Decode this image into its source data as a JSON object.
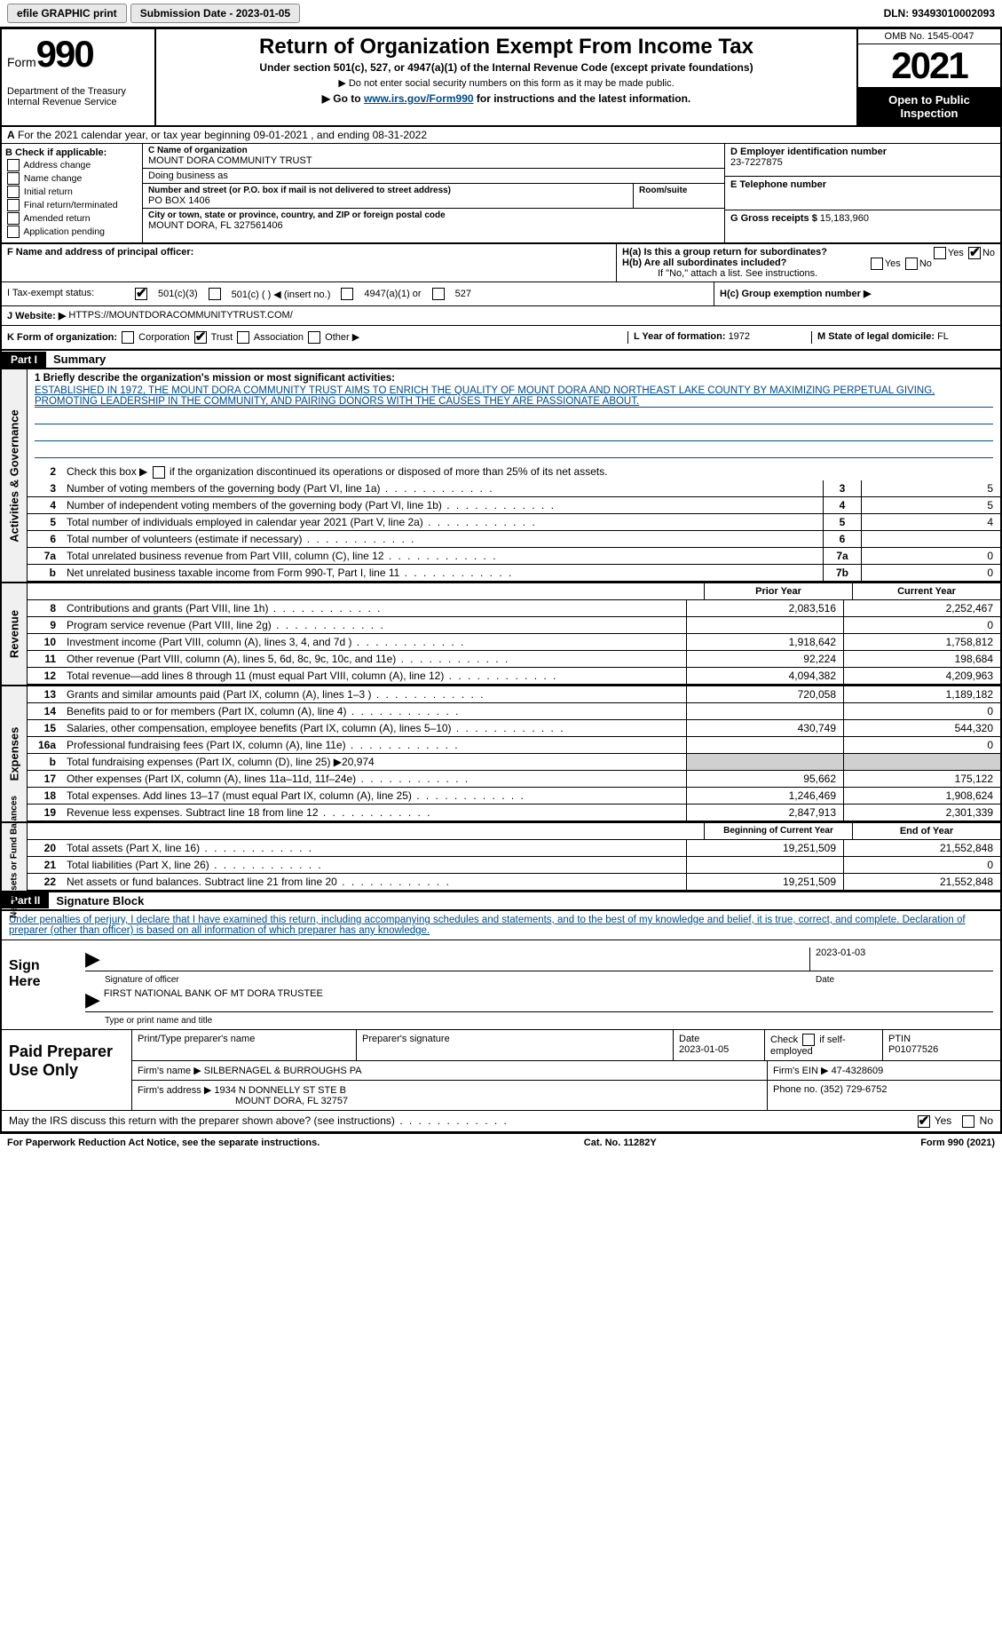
{
  "topbar": {
    "efile": "efile GRAPHIC print",
    "submission_label": "Submission Date - 2023-01-05",
    "dln": "DLN: 93493010002093"
  },
  "header": {
    "form_prefix": "Form",
    "form_number": "990",
    "dept": "Department of the Treasury",
    "irs": "Internal Revenue Service",
    "title": "Return of Organization Exempt From Income Tax",
    "sub1": "Under section 501(c), 527, or 4947(a)(1) of the Internal Revenue Code (except private foundations)",
    "sub2": "▶ Do not enter social security numbers on this form as it may be made public.",
    "sub3_pre": "▶ Go to ",
    "sub3_link": "www.irs.gov/Form990",
    "sub3_post": " for instructions and the latest information.",
    "omb": "OMB No. 1545-0047",
    "year": "2021",
    "open_pub": "Open to Public Inspection"
  },
  "rowA": "For the 2021 calendar year, or tax year beginning 09-01-2021    , and ending 08-31-2022",
  "colB": {
    "hdr": "B Check if applicable:",
    "items": [
      "Address change",
      "Name change",
      "Initial return",
      "Final return/terminated",
      "Amended return",
      "Application pending"
    ]
  },
  "colC": {
    "name_label": "C Name of organization",
    "name": "MOUNT DORA COMMUNITY TRUST",
    "dba_label": "Doing business as",
    "street_label": "Number and street (or P.O. box if mail is not delivered to street address)",
    "room_label": "Room/suite",
    "street": "PO BOX 1406",
    "city_label": "City or town, state or province, country, and ZIP or foreign postal code",
    "city": "MOUNT DORA, FL  327561406"
  },
  "colD": {
    "ein_label": "D Employer identification number",
    "ein": "23-7227875",
    "tel_label": "E Telephone number",
    "gross_label": "G Gross receipts $",
    "gross": "15,183,960"
  },
  "rowFG": {
    "f_label": "F  Name and address of principal officer:",
    "ha_label": "H(a)  Is this a group return for subordinates?",
    "hb_label": "H(b)  Are all subordinates included?",
    "hb_note": "If \"No,\" attach a list. See instructions.",
    "hc_label": "H(c)  Group exemption number ▶",
    "yes": "Yes",
    "no": "No"
  },
  "status": {
    "label": "I   Tax-exempt status:",
    "c3": "501(c)(3)",
    "c_other": "501(c) (   ) ◀ (insert no.)",
    "a1": "4947(a)(1) or",
    "s527": "527"
  },
  "website": {
    "label": "J   Website: ▶",
    "url": "HTTPS://MOUNTDORACOMMUNITYTRUST.COM/"
  },
  "korg": {
    "label": "K Form of organization:",
    "corp": "Corporation",
    "trust": "Trust",
    "assoc": "Association",
    "other": "Other ▶",
    "year_label": "L Year of formation: ",
    "year": "1972",
    "state_label": "M State of legal domicile: ",
    "state": "FL"
  },
  "part1": {
    "hdr": "Part I",
    "title": "Summary",
    "line1_label": "1  Briefly describe the organization's mission or most significant activities:",
    "mission": "ESTABLISHED IN 1972, THE MOUNT DORA COMMUNITY TRUST AIMS TO ENRICH THE QUALITY OF MOUNT DORA AND NORTHEAST LAKE COUNTY BY MAXIMIZING PERPETUAL GIVING, PROMOTING LEADERSHIP IN THE COMMUNITY, AND PAIRING DONORS WITH THE CAUSES THEY ARE PASSIONATE ABOUT.",
    "line2": "Check this box ▶     if the organization discontinued its operations or disposed of more than 25% of its net assets.",
    "lines_gov": [
      {
        "n": "3",
        "t": "Number of voting members of the governing body (Part VI, line 1a)",
        "c": "3",
        "v": "5"
      },
      {
        "n": "4",
        "t": "Number of independent voting members of the governing body (Part VI, line 1b)",
        "c": "4",
        "v": "5"
      },
      {
        "n": "5",
        "t": "Total number of individuals employed in calendar year 2021 (Part V, line 2a)",
        "c": "5",
        "v": "4"
      },
      {
        "n": "6",
        "t": "Total number of volunteers (estimate if necessary)",
        "c": "6",
        "v": ""
      },
      {
        "n": "7a",
        "t": "Total unrelated business revenue from Part VIII, column (C), line 12",
        "c": "7a",
        "v": "0"
      },
      {
        "n": "b",
        "t": "Net unrelated business taxable income from Form 990-T, Part I, line 11",
        "c": "7b",
        "v": "0"
      }
    ],
    "prior_hdr": "Prior Year",
    "current_hdr": "Current Year",
    "rev_lines": [
      {
        "n": "8",
        "t": "Contributions and grants (Part VIII, line 1h)",
        "p": "2,083,516",
        "c": "2,252,467"
      },
      {
        "n": "9",
        "t": "Program service revenue (Part VIII, line 2g)",
        "p": "",
        "c": "0"
      },
      {
        "n": "10",
        "t": "Investment income (Part VIII, column (A), lines 3, 4, and 7d )",
        "p": "1,918,642",
        "c": "1,758,812"
      },
      {
        "n": "11",
        "t": "Other revenue (Part VIII, column (A), lines 5, 6d, 8c, 9c, 10c, and 11e)",
        "p": "92,224",
        "c": "198,684"
      },
      {
        "n": "12",
        "t": "Total revenue—add lines 8 through 11 (must equal Part VIII, column (A), line 12)",
        "p": "4,094,382",
        "c": "4,209,963"
      }
    ],
    "exp_lines": [
      {
        "n": "13",
        "t": "Grants and similar amounts paid (Part IX, column (A), lines 1–3 )",
        "p": "720,058",
        "c": "1,189,182"
      },
      {
        "n": "14",
        "t": "Benefits paid to or for members (Part IX, column (A), line 4)",
        "p": "",
        "c": "0"
      },
      {
        "n": "15",
        "t": "Salaries, other compensation, employee benefits (Part IX, column (A), lines 5–10)",
        "p": "430,749",
        "c": "544,320"
      },
      {
        "n": "16a",
        "t": "Professional fundraising fees (Part IX, column (A), line 11e)",
        "p": "",
        "c": "0"
      },
      {
        "n": "b",
        "t": "Total fundraising expenses (Part IX, column (D), line 25) ▶20,974",
        "p": "SHADE",
        "c": "SHADE"
      },
      {
        "n": "17",
        "t": "Other expenses (Part IX, column (A), lines 11a–11d, 11f–24e)",
        "p": "95,662",
        "c": "175,122"
      },
      {
        "n": "18",
        "t": "Total expenses. Add lines 13–17 (must equal Part IX, column (A), line 25)",
        "p": "1,246,469",
        "c": "1,908,624"
      },
      {
        "n": "19",
        "t": "Revenue less expenses. Subtract line 18 from line 12",
        "p": "2,847,913",
        "c": "2,301,339"
      }
    ],
    "begin_hdr": "Beginning of Current Year",
    "end_hdr": "End of Year",
    "net_lines": [
      {
        "n": "20",
        "t": "Total assets (Part X, line 16)",
        "p": "19,251,509",
        "c": "21,552,848"
      },
      {
        "n": "21",
        "t": "Total liabilities (Part X, line 26)",
        "p": "",
        "c": "0"
      },
      {
        "n": "22",
        "t": "Net assets or fund balances. Subtract line 21 from line 20",
        "p": "19,251,509",
        "c": "21,552,848"
      }
    ]
  },
  "part2": {
    "hdr": "Part II",
    "title": "Signature Block",
    "decl": "Under penalties of perjury, I declare that I have examined this return, including accompanying schedules and statements, and to the best of my knowledge and belief, it is true, correct, and complete. Declaration of preparer (other than officer) is based on all information of which preparer has any knowledge.",
    "sign_here": "Sign Here",
    "sig_officer": "Signature of officer",
    "sig_date": "Date",
    "sig_date_val": "2023-01-03",
    "officer_name": "FIRST NATIONAL BANK OF MT DORA  TRUSTEE",
    "type_name": "Type or print name and title",
    "paid_label": "Paid Preparer Use Only",
    "prep_name_label": "Print/Type preparer's name",
    "prep_sig_label": "Preparer's signature",
    "prep_date_label": "Date",
    "prep_date": "2023-01-05",
    "self_emp": "Check       if self-employed",
    "ptin_label": "PTIN",
    "ptin": "P01077526",
    "firm_name_label": "Firm's name    ▶",
    "firm_name": "SILBERNAGEL & BURROUGHS PA",
    "firm_ein_label": "Firm's EIN ▶",
    "firm_ein": "47-4328609",
    "firm_addr_label": "Firm's address ▶",
    "firm_addr1": "1934 N DONNELLY ST STE B",
    "firm_addr2": "MOUNT DORA, FL  32757",
    "phone_label": "Phone no.",
    "phone": "(352) 729-6752",
    "discuss": "May the IRS discuss this return with the preparer shown above? (see instructions)"
  },
  "footer": {
    "left": "For Paperwork Reduction Act Notice, see the separate instructions.",
    "center": "Cat. No. 11282Y",
    "right": "Form 990 (2021)"
  },
  "labels": {
    "vtab_gov": "Activities & Governance",
    "vtab_rev": "Revenue",
    "vtab_exp": "Expenses",
    "vtab_net": "Net Assets or Fund Balances"
  }
}
